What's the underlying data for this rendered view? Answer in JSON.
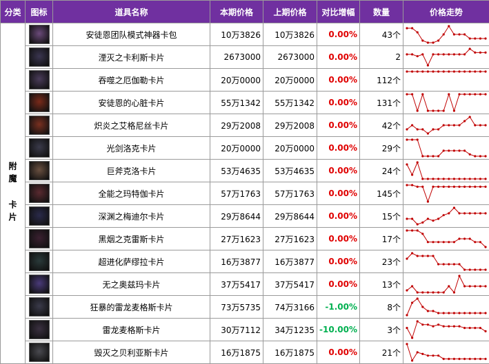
{
  "header": {
    "columns": [
      "分类",
      "图标",
      "道具名称",
      "本期价格",
      "上期价格",
      "对比增幅",
      "数量",
      "价格走势"
    ]
  },
  "category": "附魔 卡片",
  "rows": [
    {
      "name": "安徒恩团队模式神器卡包",
      "current": "10万3826",
      "previous": "10万3826",
      "change": "0.00%",
      "qty": "43个",
      "trend": [
        9,
        9,
        7,
        3,
        2,
        2,
        3,
        6,
        10,
        6,
        6,
        6,
        4,
        4,
        4,
        4
      ]
    },
    {
      "name": "湮灭之卡利斯卡片",
      "current": "2673000",
      "previous": "2673000",
      "change": "0.00%",
      "qty": "2",
      "trend": [
        7,
        7,
        6,
        7,
        1,
        7,
        7,
        7,
        7,
        7,
        7,
        7,
        10,
        8,
        8,
        8
      ]
    },
    {
      "name": "吞噬之厄伽勒卡片",
      "current": "20万0000",
      "previous": "20万0000",
      "change": "0.00%",
      "qty": "112个",
      "trend": [
        5,
        5,
        5,
        5,
        5,
        5,
        5,
        5,
        5,
        5,
        5,
        5,
        5,
        5,
        5,
        5
      ]
    },
    {
      "name": "安徒恩的心脏卡片",
      "current": "55万1342",
      "previous": "55万1342",
      "change": "0.00%",
      "qty": "131个",
      "trend": [
        8,
        8,
        0,
        8,
        0,
        0,
        0,
        0,
        8,
        0,
        8,
        8,
        8,
        8,
        8,
        8
      ]
    },
    {
      "name": "炽炎之艾格尼丝卡片",
      "current": "29万2008",
      "previous": "29万2008",
      "change": "0.00%",
      "qty": "42个",
      "trend": [
        3,
        5,
        3,
        3,
        1,
        3,
        3,
        5,
        5,
        5,
        5,
        7,
        9,
        5,
        5,
        5
      ]
    },
    {
      "name": "光剑洛克卡片",
      "current": "20万0000",
      "previous": "20万0000",
      "change": "0.00%",
      "qty": "29个",
      "trend": [
        9,
        9,
        9,
        0,
        0,
        0,
        0,
        3,
        3,
        3,
        3,
        3,
        1,
        0,
        0,
        0
      ]
    },
    {
      "name": "巨斧克洛卡片",
      "current": "53万4635",
      "previous": "53万4635",
      "change": "0.00%",
      "qty": "24个",
      "trend": [
        7,
        2,
        8,
        0,
        0,
        0,
        0,
        0,
        0,
        0,
        0,
        0,
        0,
        0,
        0,
        0
      ]
    },
    {
      "name": "全能之玛特伽卡片",
      "current": "57万1763",
      "previous": "57万1763",
      "change": "0.00%",
      "qty": "145个",
      "trend": [
        10,
        10,
        9,
        9,
        0,
        9,
        9,
        9,
        9,
        9,
        9,
        9,
        9,
        9,
        9,
        9
      ]
    },
    {
      "name": "深渊之梅迪尔卡片",
      "current": "29万8644",
      "previous": "29万8644",
      "change": "0.00%",
      "qty": "15个",
      "trend": [
        4,
        4,
        1,
        2,
        4,
        3,
        4,
        6,
        7,
        10,
        7,
        7,
        7,
        7,
        7,
        7
      ]
    },
    {
      "name": "黑烟之克雷斯卡片",
      "current": "27万1623",
      "previous": "27万1623",
      "change": "0.00%",
      "qty": "17个",
      "trend": [
        10,
        10,
        10,
        8,
        3,
        3,
        3,
        3,
        3,
        3,
        5,
        5,
        5,
        3,
        3,
        0
      ]
    },
    {
      "name": "超进化萨缪拉卡片",
      "current": "16万3877",
      "previous": "16万3877",
      "change": "0.00%",
      "qty": "23个",
      "trend": [
        6,
        8,
        7,
        7,
        7,
        7,
        4,
        4,
        4,
        4,
        4,
        2,
        2,
        2,
        2,
        2
      ]
    },
    {
      "name": "无之奥兹玛卡片",
      "current": "37万5417",
      "previous": "37万5417",
      "change": "0.00%",
      "qty": "13个",
      "trend": [
        3,
        5,
        2,
        2,
        2,
        2,
        2,
        2,
        5,
        2,
        10,
        5,
        5,
        5,
        5,
        5
      ]
    },
    {
      "name": "狂暴的雷龙麦格斯卡片",
      "current": "73万5735",
      "previous": "74万3166",
      "change": "-1.00%",
      "qty": "8个",
      "trend": [
        2,
        8,
        10,
        6,
        4,
        4,
        3,
        3,
        3,
        3,
        3,
        3,
        3,
        3,
        3,
        3
      ]
    },
    {
      "name": "雷龙麦格斯卡片",
      "current": "30万7112",
      "previous": "34万1235",
      "change": "-10.00%",
      "qty": "3个",
      "trend": [
        6,
        0,
        10,
        8,
        8,
        7,
        8,
        7,
        7,
        7,
        7,
        6,
        6,
        6,
        6,
        4
      ]
    },
    {
      "name": "毁灭之贝利亚斯卡片",
      "current": "16万1875",
      "previous": "16万1875",
      "change": "0.00%",
      "qty": "21个",
      "trend": [
        10,
        0,
        5,
        4,
        3,
        3,
        3,
        1,
        1,
        1,
        1,
        1,
        1,
        1,
        1,
        1
      ]
    }
  ]
}
